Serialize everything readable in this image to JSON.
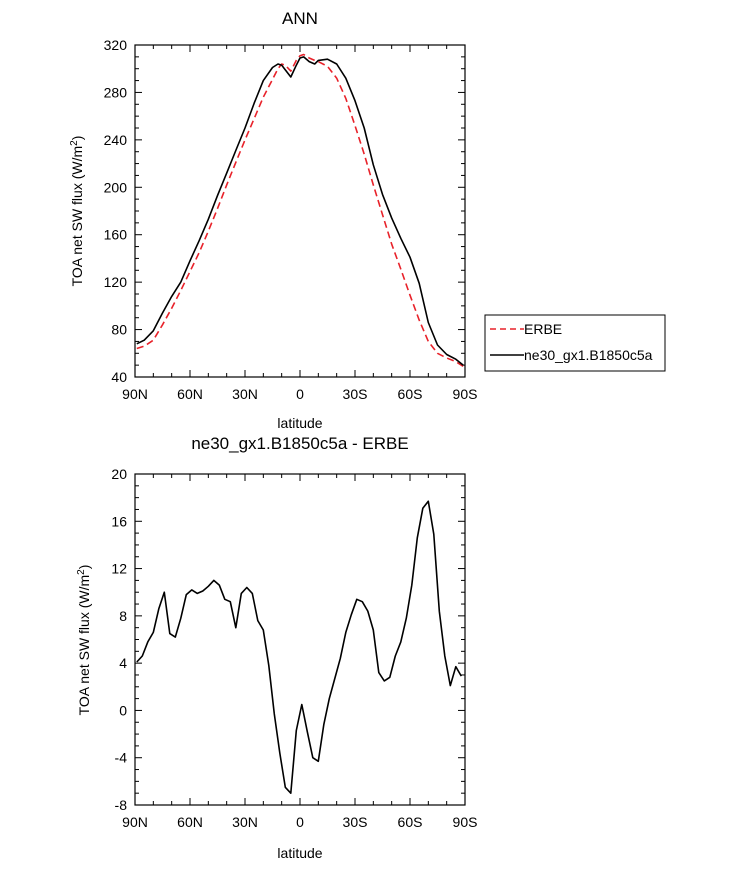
{
  "chart_data": [
    {
      "type": "line",
      "title": "ANN",
      "xlabel": "latitude",
      "ylabel": "TOA net SW flux (W/m",
      "ylabel_superscript": "2",
      "ylabel_suffix": ")",
      "x_ticks": [
        {
          "value": 90,
          "label": "90N"
        },
        {
          "value": 60,
          "label": "60N"
        },
        {
          "value": 30,
          "label": "30N"
        },
        {
          "value": 0,
          "label": "0"
        },
        {
          "value": -30,
          "label": "30S"
        },
        {
          "value": -60,
          "label": "60S"
        },
        {
          "value": -90,
          "label": "90S"
        }
      ],
      "xlim": [
        90,
        -90
      ],
      "ylim": [
        40,
        320
      ],
      "y_ticks": [
        40,
        80,
        120,
        160,
        200,
        240,
        280,
        320
      ],
      "legend": "outside-right",
      "series": [
        {
          "name": "ERBE",
          "color": "#e8222a",
          "dash": "dashed",
          "x": [
            89,
            85,
            80,
            75,
            70,
            65,
            60,
            55,
            50,
            45,
            40,
            35,
            30,
            25,
            20,
            15,
            12,
            10,
            8,
            5,
            2,
            0,
            -2,
            -5,
            -8,
            -10,
            -15,
            -20,
            -25,
            -30,
            -35,
            -40,
            -45,
            -50,
            -55,
            -60,
            -65,
            -70,
            -75,
            -80,
            -85,
            -89
          ],
          "y": [
            64,
            66,
            71,
            84,
            98,
            113,
            129,
            145,
            163,
            182,
            202,
            221,
            240,
            258,
            276,
            291,
            300,
            304,
            303,
            298,
            307,
            311,
            312,
            309,
            307,
            306,
            302,
            292,
            275,
            252,
            228,
            202,
            177,
            152,
            131,
            109,
            88,
            70,
            60,
            56,
            53,
            49
          ]
        },
        {
          "name": "ne30_gx1.B1850c5a",
          "color": "#000000",
          "dash": "solid",
          "x": [
            89,
            85,
            80,
            75,
            70,
            65,
            60,
            55,
            50,
            45,
            40,
            35,
            30,
            25,
            20,
            15,
            12,
            10,
            8,
            5,
            2,
            0,
            -2,
            -5,
            -8,
            -10,
            -15,
            -20,
            -25,
            -30,
            -35,
            -40,
            -45,
            -50,
            -55,
            -60,
            -65,
            -70,
            -75,
            -80,
            -85,
            -89
          ],
          "y": [
            68,
            71,
            79,
            94,
            108,
            120,
            138,
            155,
            173,
            193,
            212,
            231,
            250,
            271,
            290,
            301,
            304,
            303,
            299,
            293,
            303,
            309,
            310,
            306,
            304,
            307,
            308,
            304,
            292,
            273,
            250,
            219,
            194,
            174,
            157,
            141,
            119,
            86,
            67,
            59,
            55,
            50
          ]
        }
      ]
    },
    {
      "type": "line",
      "title": "ne30_gx1.B1850c5a - ERBE",
      "xlabel": "latitude",
      "ylabel": "TOA net SW flux (W/m",
      "ylabel_superscript": "2",
      "ylabel_suffix": ")",
      "x_ticks": [
        {
          "value": 90,
          "label": "90N"
        },
        {
          "value": 60,
          "label": "60N"
        },
        {
          "value": 30,
          "label": "30N"
        },
        {
          "value": 0,
          "label": "0"
        },
        {
          "value": -30,
          "label": "30S"
        },
        {
          "value": -60,
          "label": "60S"
        },
        {
          "value": -90,
          "label": "90S"
        }
      ],
      "xlim": [
        90,
        -90
      ],
      "ylim": [
        -8,
        20
      ],
      "y_ticks": [
        -8,
        -4,
        0,
        4,
        8,
        12,
        16,
        20
      ],
      "series": [
        {
          "name": "",
          "color": "#000000",
          "dash": "solid",
          "x": [
            89,
            86,
            83,
            80,
            77,
            74,
            71,
            68,
            65,
            62,
            59,
            56,
            53,
            50,
            47,
            44,
            41,
            38,
            35,
            32,
            29,
            26,
            23,
            20,
            17,
            14,
            11,
            8,
            5,
            2,
            -1,
            -4,
            -7,
            -10,
            -13,
            -16,
            -19,
            -22,
            -25,
            -28,
            -31,
            -34,
            -37,
            -40,
            -43,
            -46,
            -49,
            -52,
            -55,
            -58,
            -61,
            -64,
            -67,
            -70,
            -73,
            -76,
            -79,
            -82,
            -85,
            -88
          ],
          "y": [
            4.1,
            4.6,
            5.8,
            6.6,
            8.6,
            10.0,
            6.5,
            6.2,
            7.8,
            9.8,
            10.2,
            9.9,
            10.1,
            10.5,
            11.0,
            10.6,
            9.4,
            9.2,
            7.0,
            9.9,
            10.4,
            9.9,
            7.6,
            6.8,
            3.8,
            -0.3,
            -3.6,
            -6.5,
            -7.0,
            -1.7,
            0.5,
            -1.8,
            -4.0,
            -4.3,
            -1.2,
            1.0,
            2.7,
            4.4,
            6.6,
            8.1,
            9.4,
            9.2,
            8.4,
            6.8,
            3.2,
            2.5,
            2.8,
            4.6,
            5.8,
            7.8,
            10.6,
            14.6,
            17.1,
            17.7,
            14.9,
            8.4,
            4.6,
            2.1,
            3.7,
            2.9
          ]
        }
      ]
    }
  ]
}
